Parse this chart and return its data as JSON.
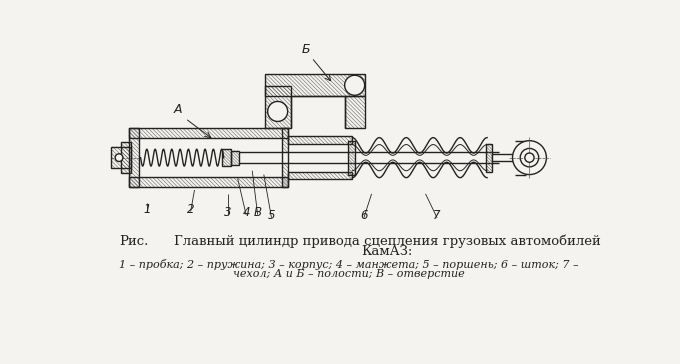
{
  "title_line1": "Главный цилиндр привода сцепления грузовых автомобилей",
  "title_line2": "КамАЗ:",
  "caption_line1": "1 – пробка; 2 – пружина; 3 – корпус; 4 – манжета; 5 – поршень; 6 – шток; 7 –",
  "caption_line2": "чехол; А и Б – полости; В – отверстие",
  "ris_label": "Рис.",
  "bg_color": "#f5f3ef",
  "line_color": "#222222",
  "hatch_color": "#666666"
}
